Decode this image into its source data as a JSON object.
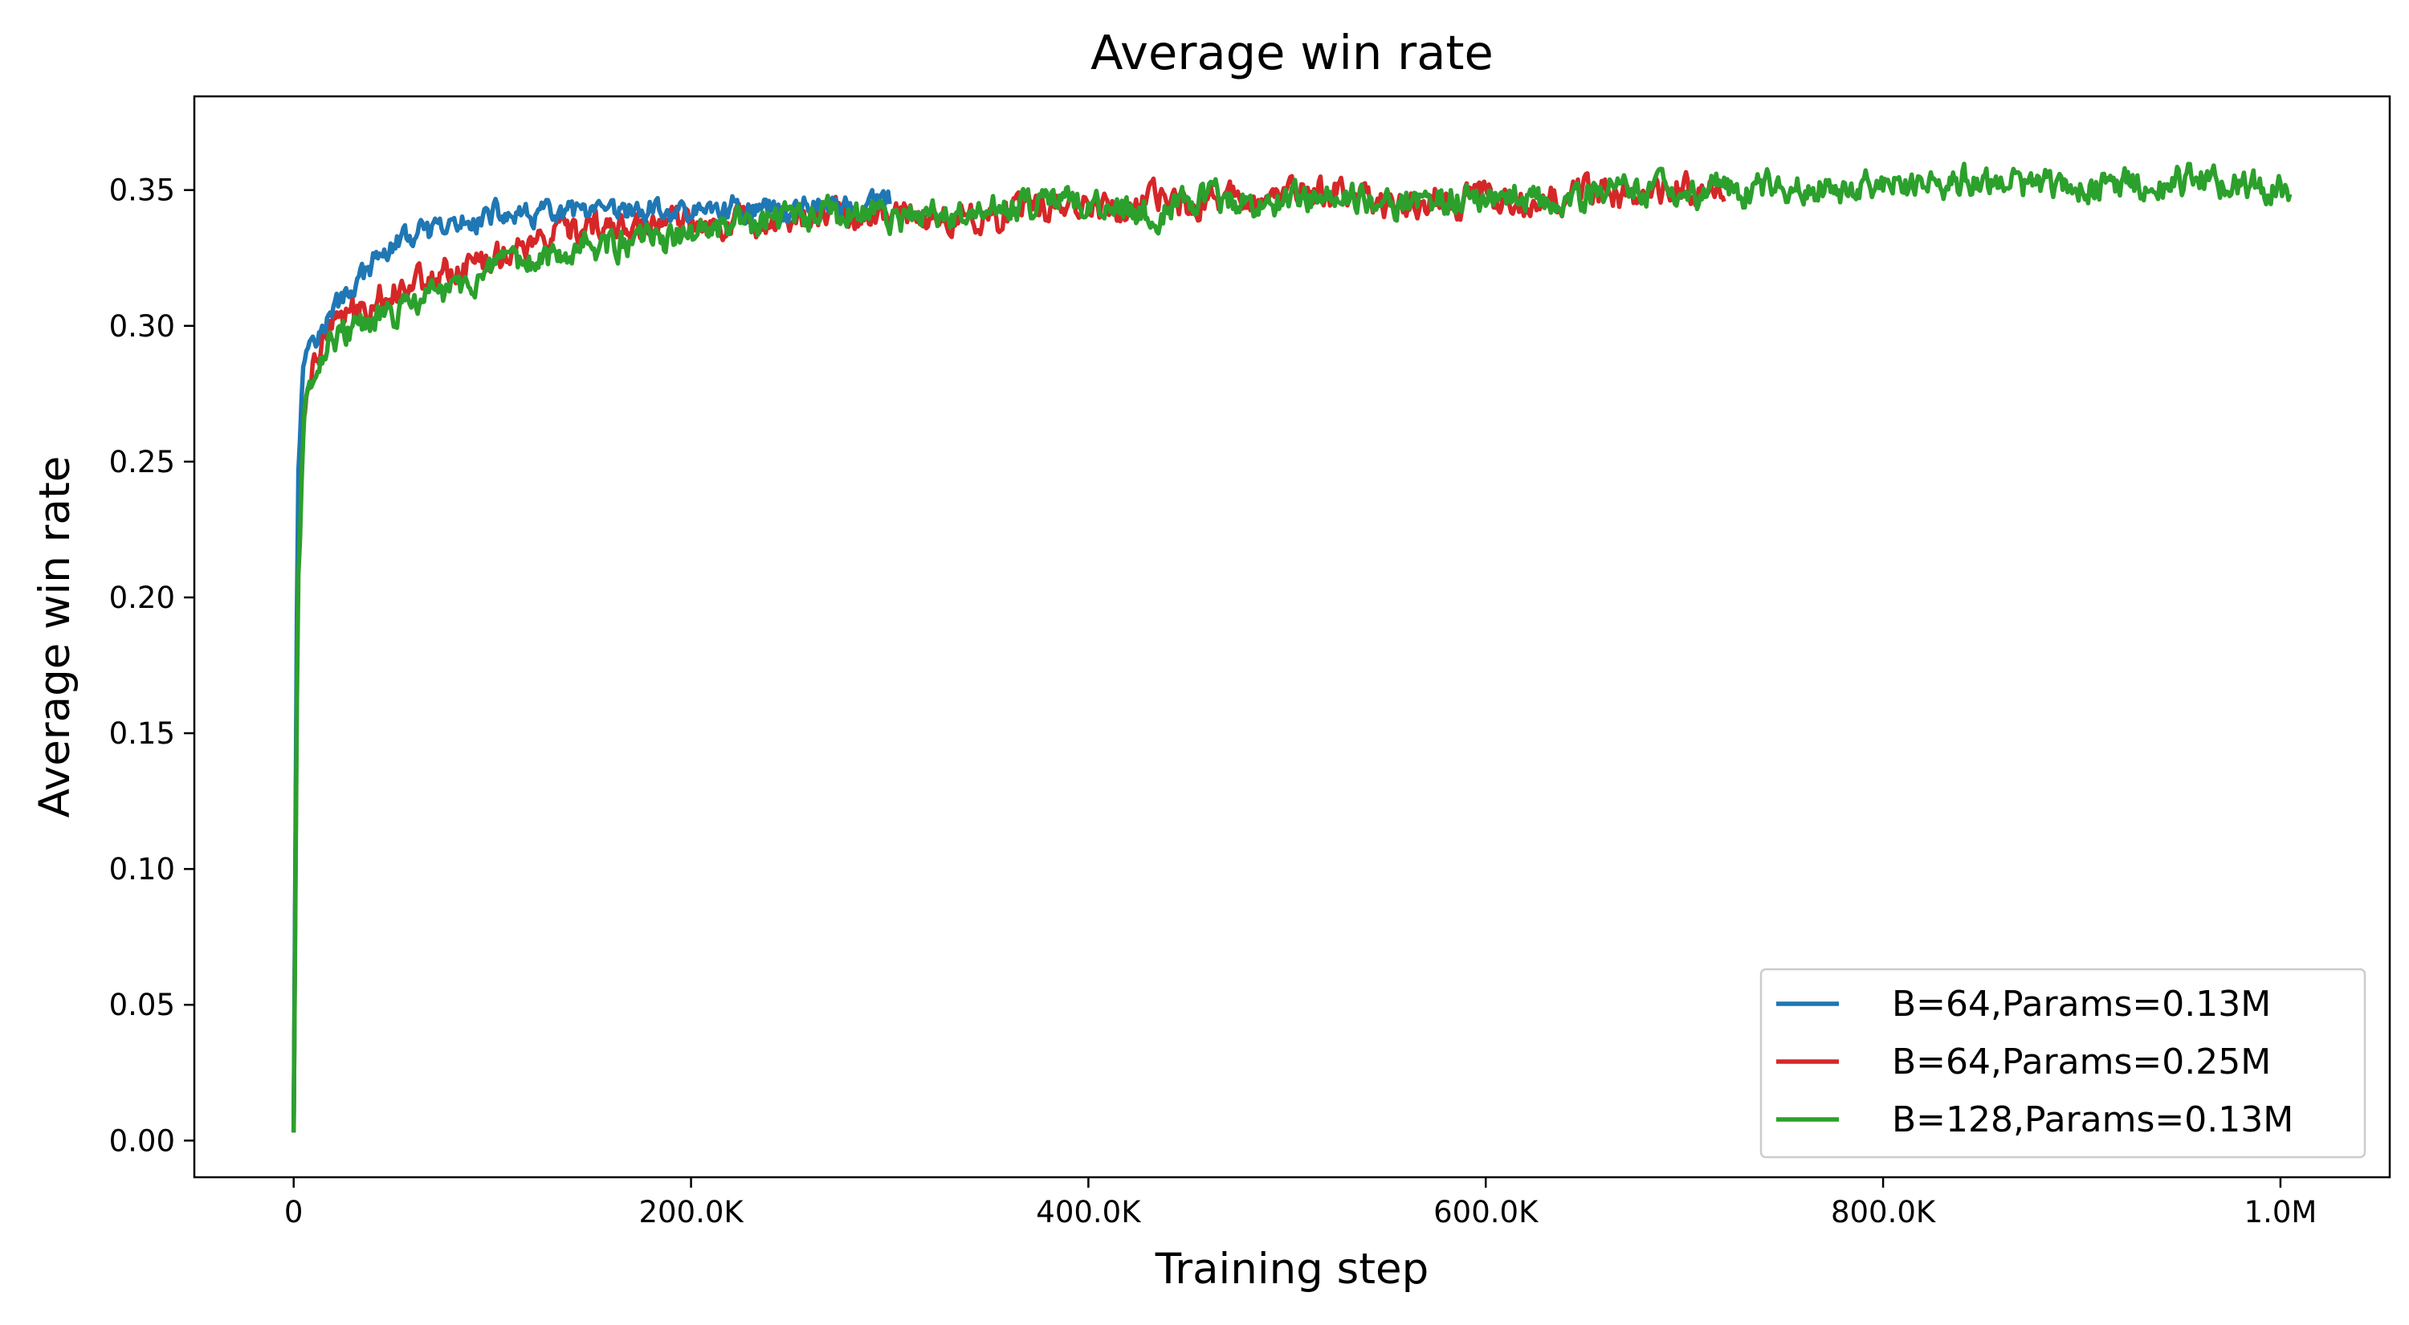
{
  "chart_data": {
    "type": "line",
    "title": "Average win rate",
    "xlabel": "Training step",
    "ylabel": "Average win rate",
    "xlim": [
      -50000,
      1055000
    ],
    "ylim": [
      -0.0135,
      0.3845
    ],
    "xticks": [
      {
        "value": 0,
        "label": "0"
      },
      {
        "value": 200000,
        "label": "200.0K"
      },
      {
        "value": 400000,
        "label": "400.0K"
      },
      {
        "value": 600000,
        "label": "600.0K"
      },
      {
        "value": 800000,
        "label": "800.0K"
      },
      {
        "value": 1000000,
        "label": "1.0M"
      }
    ],
    "yticks": [
      {
        "value": 0.0,
        "label": "0.00"
      },
      {
        "value": 0.05,
        "label": "0.05"
      },
      {
        "value": 0.1,
        "label": "0.10"
      },
      {
        "value": 0.15,
        "label": "0.15"
      },
      {
        "value": 0.2,
        "label": "0.20"
      },
      {
        "value": 0.25,
        "label": "0.25"
      },
      {
        "value": 0.3,
        "label": "0.30"
      },
      {
        "value": 0.35,
        "label": "0.35"
      }
    ],
    "grid": false,
    "legend_position": "bottom-right",
    "series": [
      {
        "name": "B=64,Params=0.13M",
        "color": "#1f77b4",
        "x": [
          0,
          2000,
          5000,
          10000,
          15000,
          20000,
          30000,
          40000,
          50000,
          60000,
          70000,
          80000,
          90000,
          100000,
          120000,
          140000,
          160000,
          180000,
          200000,
          220000,
          240000,
          260000,
          280000,
          300000
        ],
        "y": [
          0.003,
          0.24,
          0.29,
          0.3,
          0.302,
          0.308,
          0.318,
          0.325,
          0.33,
          0.333,
          0.335,
          0.337,
          0.338,
          0.339,
          0.34,
          0.341,
          0.342,
          0.343,
          0.343,
          0.344,
          0.344,
          0.345,
          0.345,
          0.346
        ]
      },
      {
        "name": "B=64,Params=0.25M",
        "color": "#d62728",
        "x": [
          0,
          2000,
          5000,
          10000,
          15000,
          20000,
          30000,
          40000,
          50000,
          60000,
          80000,
          100000,
          120000,
          150000,
          200000,
          250000,
          300000,
          350000,
          400000,
          450000,
          500000,
          550000,
          600000,
          650000,
          700000,
          720000
        ],
        "y": [
          0.003,
          0.22,
          0.27,
          0.285,
          0.292,
          0.298,
          0.303,
          0.307,
          0.311,
          0.315,
          0.322,
          0.327,
          0.331,
          0.335,
          0.338,
          0.34,
          0.342,
          0.343,
          0.345,
          0.346,
          0.347,
          0.347,
          0.348,
          0.348,
          0.349,
          0.349
        ]
      },
      {
        "name": "B=128,Params=0.13M",
        "color": "#2ca02c",
        "x": [
          0,
          2000,
          5000,
          10000,
          15000,
          20000,
          30000,
          40000,
          50000,
          60000,
          80000,
          100000,
          120000,
          150000,
          200000,
          250000,
          300000,
          350000,
          400000,
          450000,
          500000,
          550000,
          600000,
          650000,
          700000,
          750000,
          800000,
          850000,
          900000,
          950000,
          1000000,
          1005000
        ],
        "y": [
          0.003,
          0.2,
          0.265,
          0.282,
          0.288,
          0.294,
          0.298,
          0.301,
          0.304,
          0.307,
          0.313,
          0.318,
          0.323,
          0.329,
          0.334,
          0.338,
          0.34,
          0.342,
          0.344,
          0.345,
          0.346,
          0.347,
          0.348,
          0.349,
          0.35,
          0.351,
          0.352,
          0.352,
          0.353,
          0.354,
          0.354,
          0.354
        ]
      }
    ]
  }
}
